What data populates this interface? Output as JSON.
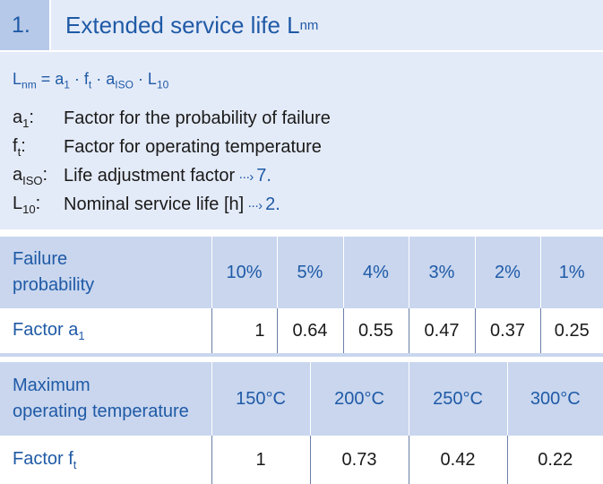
{
  "header": {
    "number": "1.",
    "title": "Extended service life L",
    "title_sub": "nm"
  },
  "formula": {
    "lhs": "L",
    "lhs_sub": "nm",
    "rhs_1": " = a",
    "rhs_1_sub": "1",
    "rhs_2": " · f",
    "rhs_2_sub": "t",
    "rhs_3": " · a",
    "rhs_3_sub": "ISO",
    "rhs_4": " · L",
    "rhs_4_sub": "10"
  },
  "definitions": [
    {
      "sym": "a",
      "sub": "1",
      "colon": ":",
      "text": "Factor for the probability of failure",
      "ref": ""
    },
    {
      "sym": "f",
      "sub": "t",
      "colon": ":",
      "text": "Factor for operating temperature",
      "ref": ""
    },
    {
      "sym": "a",
      "sub": "ISO",
      "colon": ":",
      "text": "Life adjustment factor",
      "ref": "7."
    },
    {
      "sym": "L",
      "sub": "10",
      "colon": ":",
      "text": "Nominal service life [h]",
      "ref": "2."
    }
  ],
  "arrow_glyph": "···›",
  "table_failure": {
    "header_label_1": "Failure",
    "header_label_2": "probability",
    "headers": [
      "10%",
      "5%",
      "4%",
      "3%",
      "2%",
      "1%"
    ],
    "row_label": "Factor a",
    "row_label_sub": "1",
    "values": [
      "1",
      "0.64",
      "0.55",
      "0.47",
      "0.37",
      "0.25"
    ]
  },
  "table_temperature": {
    "header_label_1": "Maximum",
    "header_label_2": "operating temperature",
    "headers": [
      "150°C",
      "200°C",
      "250°C",
      "300°C"
    ],
    "row_label": "Factor f",
    "row_label_sub": "t",
    "values": [
      "1",
      "0.73",
      "0.42",
      "0.22"
    ]
  },
  "colors": {
    "accent": "#1f5aa6",
    "header_dark": "#b6c9e9",
    "header_light": "#e4ebf8",
    "table_header": "#c9d6ee"
  }
}
